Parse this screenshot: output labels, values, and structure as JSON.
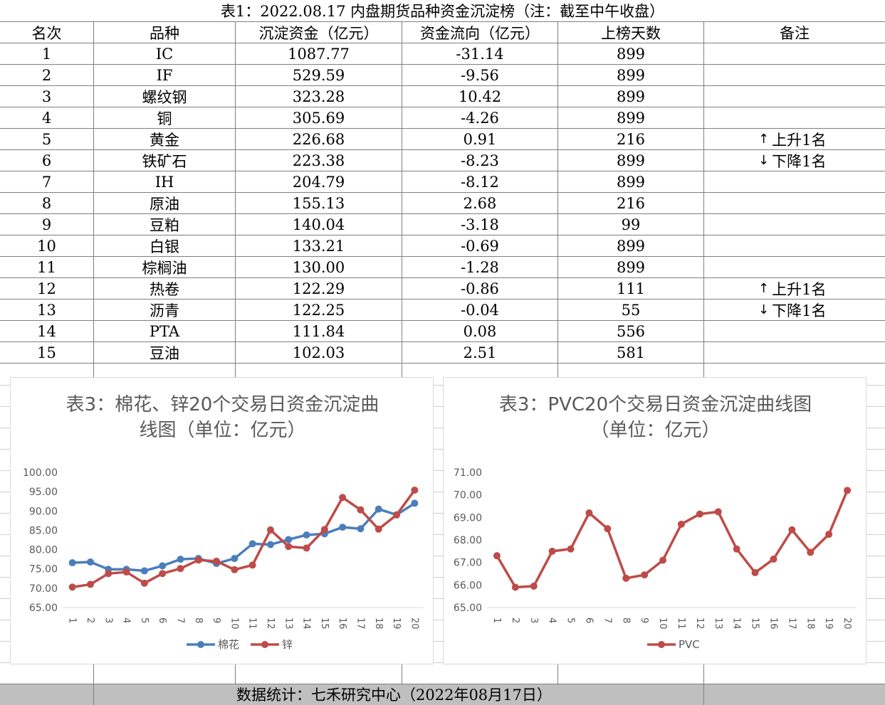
{
  "table": {
    "title": "表1：2022.08.17 内盘期货品种资金沉淀榜（注：截至中午收盘）",
    "headers": [
      "名次",
      "品种",
      "沉淀资金（亿元）",
      "资金流向（亿元）",
      "上榜天数",
      "备注"
    ],
    "rows": [
      {
        "rank": "1",
        "name": "IC",
        "fund": "1087.77",
        "flow": "-31.14",
        "days": "899",
        "arrow": "",
        "note": ""
      },
      {
        "rank": "2",
        "name": "IF",
        "fund": "529.59",
        "flow": "-9.56",
        "days": "899",
        "arrow": "",
        "note": ""
      },
      {
        "rank": "3",
        "name": "螺纹钢",
        "fund": "323.28",
        "flow": "10.42",
        "days": "899",
        "arrow": "",
        "note": ""
      },
      {
        "rank": "4",
        "name": "铜",
        "fund": "305.69",
        "flow": "-4.26",
        "days": "899",
        "arrow": "",
        "note": ""
      },
      {
        "rank": "5",
        "name": "黄金",
        "fund": "226.68",
        "flow": "0.91",
        "days": "216",
        "arrow": "↑",
        "note": "上升1名"
      },
      {
        "rank": "6",
        "name": "铁矿石",
        "fund": "223.38",
        "flow": "-8.23",
        "days": "899",
        "arrow": "↓",
        "note": "下降1名"
      },
      {
        "rank": "7",
        "name": "IH",
        "fund": "204.79",
        "flow": "-8.12",
        "days": "899",
        "arrow": "",
        "note": ""
      },
      {
        "rank": "8",
        "name": "原油",
        "fund": "155.13",
        "flow": "2.68",
        "days": "216",
        "arrow": "",
        "note": ""
      },
      {
        "rank": "9",
        "name": "豆粕",
        "fund": "140.04",
        "flow": "-3.18",
        "days": "99",
        "arrow": "",
        "note": ""
      },
      {
        "rank": "10",
        "name": "白银",
        "fund": "133.21",
        "flow": "-0.69",
        "days": "899",
        "arrow": "",
        "note": ""
      },
      {
        "rank": "11",
        "name": "棕榈油",
        "fund": "130.00",
        "flow": "-1.28",
        "days": "899",
        "arrow": "",
        "note": ""
      },
      {
        "rank": "12",
        "name": "热卷",
        "fund": "122.29",
        "flow": "-0.86",
        "days": "111",
        "arrow": "↑",
        "note": "上升1名"
      },
      {
        "rank": "13",
        "name": "沥青",
        "fund": "122.25",
        "flow": "-0.04",
        "days": "55",
        "arrow": "↓",
        "note": "下降1名"
      },
      {
        "rank": "14",
        "name": "PTA",
        "fund": "111.84",
        "flow": "0.08",
        "days": "556",
        "arrow": "",
        "note": ""
      },
      {
        "rank": "15",
        "name": "豆油",
        "fund": "102.03",
        "flow": "2.51",
        "days": "581",
        "arrow": "",
        "note": ""
      }
    ]
  },
  "footer": {
    "text": "数据统计：七禾研究中心（2022年08月17日）"
  },
  "colors": {
    "blue": "#4a7ebb",
    "red": "#be4b48",
    "axis_text": "#595959",
    "grid": "#d9d9d9",
    "footer_bg": "#bfbfbf"
  },
  "chart_data": [
    {
      "type": "line",
      "title_line1": "表3：棉花、锌20个交易日资金沉淀曲",
      "title_line2": "线图（单位：亿元）",
      "x": [
        "1",
        "2",
        "3",
        "4",
        "5",
        "6",
        "7",
        "8",
        "9",
        "10",
        "11",
        "12",
        "13",
        "14",
        "15",
        "16",
        "17",
        "18",
        "19",
        "20"
      ],
      "ylim": [
        65,
        100
      ],
      "yticks": [
        "65.00",
        "70.00",
        "75.00",
        "80.00",
        "85.00",
        "90.00",
        "95.00",
        "100.00"
      ],
      "legend_position": "bottom",
      "series": [
        {
          "name": "棉花",
          "color": "#4a7ebb",
          "values": [
            76.6,
            76.8,
            74.9,
            74.9,
            74.5,
            75.8,
            77.5,
            77.7,
            76.4,
            77.7,
            81.5,
            81.3,
            82.6,
            83.8,
            84.1,
            85.8,
            85.4,
            90.5,
            89.0,
            92.0
          ]
        },
        {
          "name": "锌",
          "color": "#be4b48",
          "values": [
            70.3,
            71.0,
            73.8,
            74.2,
            71.3,
            73.8,
            75.1,
            77.3,
            77.0,
            74.8,
            76.0,
            85.1,
            80.8,
            80.4,
            85.2,
            93.5,
            90.3,
            85.3,
            89.0,
            95.4
          ]
        }
      ]
    },
    {
      "type": "line",
      "title_line1": "表3：PVC20个交易日资金沉淀曲线图",
      "title_line2": "（单位：亿元）",
      "x": [
        "1",
        "2",
        "3",
        "4",
        "5",
        "6",
        "7",
        "8",
        "9",
        "10",
        "11",
        "12",
        "13",
        "14",
        "15",
        "16",
        "17",
        "18",
        "19",
        "20"
      ],
      "ylim": [
        65,
        71
      ],
      "yticks": [
        "65.00",
        "66.00",
        "67.00",
        "68.00",
        "69.00",
        "70.00",
        "71.00"
      ],
      "legend_position": "bottom",
      "series": [
        {
          "name": "PVC",
          "color": "#be4b48",
          "values": [
            67.3,
            65.9,
            65.95,
            67.5,
            67.6,
            69.2,
            68.5,
            66.3,
            66.45,
            67.1,
            68.7,
            69.15,
            69.25,
            67.6,
            66.55,
            67.15,
            68.45,
            67.45,
            68.25,
            70.2
          ]
        }
      ]
    }
  ]
}
